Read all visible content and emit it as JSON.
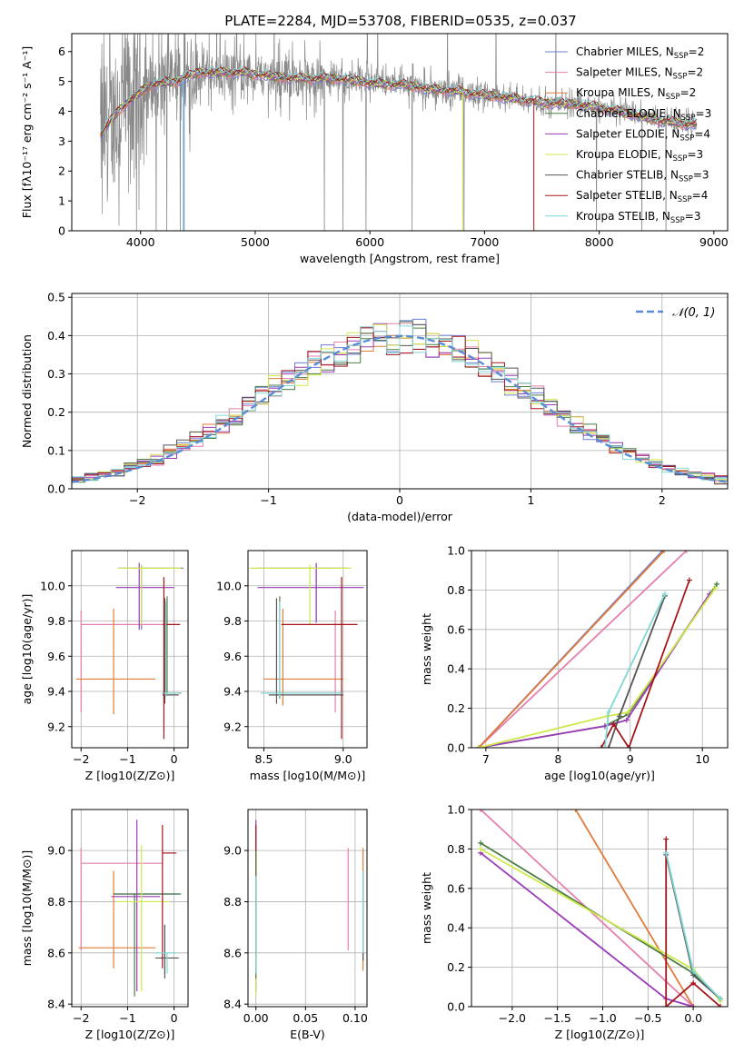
{
  "figure": {
    "title": "PLATE=2284, MJD=53708, FIBERID=0535, z=0.037"
  },
  "colors": {
    "Chabrier MILES": "#6a7fd6",
    "Salpeter MILES": "#e47fae",
    "Kroupa MILES": "#e07b39",
    "Chabrier ELODIE": "#4d7d44",
    "Salpeter ELODIE": "#9c3bb7",
    "Kroupa ELODIE": "#cfe84b",
    "Chabrier STELIB": "#555555",
    "Salpeter STELIB": "#a4161a",
    "Kroupa STELIB": "#7fd8d6",
    "data": "#888888",
    "normal": "#5b8dd6",
    "grid": "#b0b0b0"
  },
  "chart_data": [
    {
      "id": "spectrum",
      "type": "line",
      "title": "PLATE=2284, MJD=53708, FIBERID=0535, z=0.037",
      "xlabel": "wavelength [Angstrom, rest frame]",
      "ylabel": "Flux [fλ10⁻¹⁷ erg cm⁻² s⁻¹ A⁻¹]",
      "xlim": [
        3400,
        9120
      ],
      "ylim": [
        0,
        6.6
      ],
      "xticks": [
        4000,
        5000,
        6000,
        7000,
        8000,
        9000
      ],
      "yticks": [
        0,
        1,
        2,
        3,
        4,
        5,
        6
      ],
      "grid": false,
      "legend_position": "upper right",
      "legend": [
        {
          "name": "Chabrier MILES",
          "nssp": "2"
        },
        {
          "name": "Salpeter MILES",
          "nssp": "2"
        },
        {
          "name": "Kroupa MILES",
          "nssp": "2"
        },
        {
          "name": "Chabrier ELODIE",
          "nssp": "3"
        },
        {
          "name": "Salpeter ELODIE",
          "nssp": "4"
        },
        {
          "name": "Kroupa ELODIE",
          "nssp": "3"
        },
        {
          "name": "Chabrier STELIB",
          "nssp": "3"
        },
        {
          "name": "Salpeter STELIB",
          "nssp": "4"
        },
        {
          "name": "Kroupa STELIB",
          "nssp": "3"
        }
      ],
      "model_shape": {
        "x": [
          3650,
          3800,
          3950,
          4100,
          4300,
          4500,
          4700,
          4900,
          5100,
          5300,
          5500,
          5700,
          5900,
          6100,
          6300,
          6500,
          6700,
          6900,
          7100,
          7300,
          7500,
          7700,
          7900,
          8100,
          8300,
          8500,
          8700,
          8850
        ],
        "y": [
          3.2,
          4.0,
          4.5,
          4.9,
          5.0,
          5.3,
          5.3,
          5.3,
          5.2,
          5.1,
          5.1,
          5.1,
          5.0,
          4.9,
          4.9,
          4.75,
          4.7,
          4.6,
          4.5,
          4.4,
          4.3,
          4.25,
          4.2,
          4.05,
          3.9,
          3.7,
          3.6,
          3.55
        ]
      }
    },
    {
      "id": "residuals",
      "type": "line",
      "xlabel": "(data-model)/error",
      "ylabel": "Normed distribution",
      "xlim": [
        -2.5,
        2.5
      ],
      "ylim": [
        0,
        0.51
      ],
      "xticks": [
        -2,
        -1,
        0,
        1,
        2
      ],
      "yticks": [
        0.0,
        0.1,
        0.2,
        0.3,
        0.4,
        0.5
      ],
      "grid": true,
      "legend_position": "upper right",
      "normal_label": "𝒩(0, 1)",
      "bin_width": 0.1
    },
    {
      "id": "age-vs-Z",
      "type": "scatter",
      "xlabel": "Z [log10(Z/Z⊙)]",
      "ylabel": "age [log10(age/yr)]",
      "xlim": [
        -2.2,
        0.3
      ],
      "ylim": [
        9.08,
        10.2
      ],
      "xticks": [
        -2,
        -1,
        0
      ],
      "yticks": [
        9.2,
        9.4,
        9.6,
        9.8,
        10.0
      ],
      "grid": true,
      "crosses": [
        {
          "series": "Chabrier MILES",
          "x": -0.7,
          "y": 10.1,
          "dx": [
            0.5,
            0.9
          ],
          "dy": [
            0.35,
            0.02
          ]
        },
        {
          "series": "Salpeter MILES",
          "x": -2.0,
          "y": 9.78,
          "dx": [
            0.0,
            1.8
          ],
          "dy": [
            0.5,
            0.08
          ]
        },
        {
          "series": "Kroupa MILES",
          "x": -1.3,
          "y": 9.47,
          "dx": [
            0.8,
            0.9
          ],
          "dy": [
            0.2,
            0.4
          ]
        },
        {
          "series": "Chabrier ELODIE",
          "x": -0.15,
          "y": 9.39,
          "dx": [
            0.1,
            0.3
          ],
          "dy": [
            0.0,
            0.55
          ]
        },
        {
          "series": "Salpeter ELODIE",
          "x": -0.75,
          "y": 9.99,
          "dx": [
            0.5,
            0.75
          ],
          "dy": [
            0.24,
            0.14
          ]
        },
        {
          "series": "Kroupa ELODIE",
          "x": -0.7,
          "y": 10.1,
          "dx": [
            0.5,
            0.85
          ],
          "dy": [
            0.32,
            0.02
          ]
        },
        {
          "series": "Chabrier STELIB",
          "x": -0.2,
          "y": 9.38,
          "dx": [
            0.05,
            0.3
          ],
          "dy": [
            0.05,
            0.55
          ]
        },
        {
          "series": "Salpeter STELIB",
          "x": -0.22,
          "y": 9.78,
          "dx": [
            0.02,
            0.35
          ],
          "dy": [
            0.65,
            0.27
          ]
        },
        {
          "series": "Kroupa STELIB",
          "x": -0.18,
          "y": 9.39,
          "dx": [
            0.05,
            0.3
          ],
          "dy": [
            0.02,
            0.52
          ]
        }
      ]
    },
    {
      "id": "age-vs-mass",
      "type": "scatter",
      "xlabel": "mass [log10(M/M⊙)]",
      "ylabel": "",
      "xlim": [
        8.4,
        9.15
      ],
      "ylim": [
        9.08,
        10.2
      ],
      "xticks": [
        8.5,
        9.0
      ],
      "yticks": [
        9.2,
        9.4,
        9.6,
        9.8,
        10.0
      ],
      "grid": true,
      "crosses": [
        {
          "series": "Chabrier MILES",
          "x": 8.83,
          "y": 10.1,
          "dx": [
            0.37,
            0.2
          ],
          "dy": [
            0.3,
            0.02
          ]
        },
        {
          "series": "Salpeter MILES",
          "x": 8.95,
          "y": 9.78,
          "dx": [
            0.0,
            0.06
          ],
          "dy": [
            0.5,
            0.08
          ]
        },
        {
          "series": "Kroupa MILES",
          "x": 8.62,
          "y": 9.47,
          "dx": [
            0.12,
            0.38
          ],
          "dy": [
            0.15,
            0.4
          ]
        },
        {
          "series": "Chabrier ELODIE",
          "x": 8.6,
          "y": 9.39,
          "dx": [
            0.12,
            0.4
          ],
          "dy": [
            0.03,
            0.55
          ]
        },
        {
          "series": "Salpeter ELODIE",
          "x": 8.83,
          "y": 9.99,
          "dx": [
            0.37,
            0.3
          ],
          "dy": [
            0.2,
            0.14
          ]
        },
        {
          "series": "Kroupa ELODIE",
          "x": 8.79,
          "y": 10.1,
          "dx": [
            0.38,
            0.26
          ],
          "dy": [
            0.32,
            0.02
          ]
        },
        {
          "series": "Chabrier STELIB",
          "x": 8.58,
          "y": 9.38,
          "dx": [
            0.05,
            0.42
          ],
          "dy": [
            0.05,
            0.55
          ]
        },
        {
          "series": "Salpeter STELIB",
          "x": 8.99,
          "y": 9.78,
          "dx": [
            0.38,
            0.1
          ],
          "dy": [
            0.65,
            0.27
          ]
        },
        {
          "series": "Kroupa STELIB",
          "x": 8.6,
          "y": 9.39,
          "dx": [
            0.12,
            0.4
          ],
          "dy": [
            0.02,
            0.52
          ]
        }
      ]
    },
    {
      "id": "weight-vs-age",
      "type": "line",
      "xlabel": "age [log10(age/yr)]",
      "ylabel": "mass weight",
      "xlim": [
        6.8,
        10.35
      ],
      "ylim": [
        0,
        1.0
      ],
      "xticks": [
        7,
        8,
        9,
        10
      ],
      "yticks": [
        0.0,
        0.2,
        0.4,
        0.6,
        0.8,
        1.0
      ],
      "grid": true,
      "series": [
        {
          "name": "Chabrier MILES",
          "x": [
            6.9,
            9.45
          ],
          "y": [
            0.0,
            1.0
          ]
        },
        {
          "name": "Salpeter MILES",
          "x": [
            6.9,
            9.78
          ],
          "y": [
            0.0,
            1.0
          ]
        },
        {
          "name": "Kroupa MILES",
          "x": [
            6.9,
            9.47
          ],
          "y": [
            0.0,
            1.0
          ]
        },
        {
          "name": "Chabrier ELODIE",
          "x": [
            6.9,
            8.65,
            8.97,
            10.2
          ],
          "y": [
            0.0,
            0.11,
            0.17,
            0.83
          ]
        },
        {
          "name": "Salpeter ELODIE",
          "x": [
            6.9,
            8.65,
            8.95,
            10.1
          ],
          "y": [
            0.0,
            0.11,
            0.14,
            0.78
          ]
        },
        {
          "name": "Kroupa ELODIE",
          "x": [
            6.9,
            8.68,
            8.97,
            10.18
          ],
          "y": [
            0.0,
            0.16,
            0.18,
            0.81
          ]
        },
        {
          "name": "Chabrier STELIB",
          "x": [
            8.7,
            8.85,
            9.48
          ],
          "y": [
            0.0,
            0.16,
            0.77
          ]
        },
        {
          "name": "Salpeter STELIB",
          "x": [
            8.6,
            8.77,
            8.98,
            9.82
          ],
          "y": [
            0.0,
            0.12,
            0.0,
            0.85
          ]
        },
        {
          "name": "Kroupa STELIB",
          "x": [
            8.65,
            8.7,
            9.48
          ],
          "y": [
            0.0,
            0.18,
            0.78
          ]
        }
      ]
    },
    {
      "id": "mass-vs-Z",
      "type": "scatter",
      "xlabel": "Z [log10(Z/Z⊙)]",
      "ylabel": "mass [log10(M/M⊙)]",
      "xlim": [
        -2.2,
        0.3
      ],
      "ylim": [
        8.39,
        9.16
      ],
      "xticks": [
        -2,
        -1,
        0
      ],
      "yticks": [
        8.4,
        8.6,
        8.8,
        9.0
      ],
      "grid": true,
      "crosses": [
        {
          "series": "Chabrier MILES",
          "x": -1.3,
          "y": 8.83,
          "dx": [
            0.0,
            1.4
          ],
          "dy": [
            0.0,
            0.0
          ]
        },
        {
          "series": "Salpeter MILES",
          "x": -2.0,
          "y": 8.95,
          "dx": [
            0.0,
            1.75
          ],
          "dy": [
            0.34,
            0.06
          ]
        },
        {
          "series": "Kroupa MILES",
          "x": -1.3,
          "y": 8.62,
          "dx": [
            0.75,
            0.9
          ],
          "dy": [
            0.08,
            0.3
          ]
        },
        {
          "series": "Chabrier ELODIE",
          "x": -0.85,
          "y": 8.83,
          "dx": [
            0.45,
            1.0
          ],
          "dy": [
            0.4,
            0.0
          ]
        },
        {
          "series": "Salpeter ELODIE",
          "x": -0.8,
          "y": 8.82,
          "dx": [
            0.55,
            0.5
          ],
          "dy": [
            0.37,
            0.3
          ]
        },
        {
          "series": "Kroupa ELODIE",
          "x": -0.7,
          "y": 8.8,
          "dx": [
            0.55,
            0.6
          ],
          "dy": [
            0.35,
            0.22
          ]
        },
        {
          "series": "Chabrier STELIB",
          "x": -0.2,
          "y": 8.58,
          "dx": [
            0.2,
            0.3
          ],
          "dy": [
            0.08,
            0.13
          ]
        },
        {
          "series": "Salpeter STELIB",
          "x": -0.25,
          "y": 8.99,
          "dx": [
            0.0,
            0.3
          ],
          "dy": [
            0.45,
            0.11
          ]
        },
        {
          "series": "Kroupa STELIB",
          "x": -0.15,
          "y": 8.6,
          "dx": [
            0.25,
            0.2
          ],
          "dy": [
            0.08,
            0.0
          ]
        }
      ]
    },
    {
      "id": "mass-vs-ebv",
      "type": "scatter",
      "xlabel": "E(B-V)",
      "ylabel": "",
      "xlim": [
        -0.008,
        0.112
      ],
      "ylim": [
        8.39,
        9.16
      ],
      "xticks": [
        0.0,
        0.05,
        0.1
      ],
      "yticks": [
        8.4,
        8.6,
        8.8,
        9.0
      ],
      "grid": true,
      "bars": [
        {
          "series": "Salpeter MILES",
          "x": 0.093,
          "y": [
            8.61,
            9.01
          ]
        },
        {
          "series": "Kroupa MILES",
          "x": 0.108,
          "y": [
            8.53,
            9.01
          ]
        },
        {
          "series": "Chabrier STELIB",
          "x": 0.108,
          "y": [
            8.57,
            8.92
          ]
        },
        {
          "series": "Kroupa STELIB",
          "x": 0.108,
          "y": [
            8.6,
            8.92
          ]
        },
        {
          "series": "Salpeter ELODIE",
          "x": 0.0,
          "y": [
            8.45,
            9.12
          ]
        },
        {
          "series": "Kroupa ELODIE",
          "x": 0.0,
          "y": [
            8.43,
            9.0
          ]
        },
        {
          "series": "Salpeter STELIB",
          "x": 0.0,
          "y": [
            8.6,
            9.1
          ]
        },
        {
          "series": "Chabrier ELODIE",
          "x": 0.0,
          "y": [
            8.5,
            9.0
          ]
        },
        {
          "series": "Kroupa STELIB",
          "x": 0.0,
          "y": [
            8.52,
            8.9
          ]
        }
      ]
    },
    {
      "id": "weight-vs-Z",
      "type": "line",
      "xlabel": "Z [log10(Z/Z⊙)]",
      "ylabel": "mass weight",
      "xlim": [
        -2.45,
        0.38
      ],
      "ylim": [
        0,
        1.0
      ],
      "xticks": [
        -2.0,
        -1.5,
        -1.0,
        -0.5,
        0.0
      ],
      "yticks": [
        0.0,
        0.2,
        0.4,
        0.6,
        0.8,
        1.0
      ],
      "grid": true,
      "series": [
        {
          "name": "Salpeter MILES",
          "x": [
            -2.35,
            0.0
          ],
          "y": [
            1.0,
            0.0
          ]
        },
        {
          "name": "Kroupa MILES",
          "x": [
            -1.3,
            0.0
          ],
          "y": [
            1.0,
            0.0
          ]
        },
        {
          "name": "Chabrier ELODIE",
          "x": [
            -2.35,
            0.0,
            0.3
          ],
          "y": [
            0.83,
            0.17,
            0.04
          ]
        },
        {
          "name": "Salpeter ELODIE",
          "x": [
            -2.35,
            -0.3,
            0.0
          ],
          "y": [
            0.78,
            0.04,
            0.0
          ]
        },
        {
          "name": "Kroupa ELODIE",
          "x": [
            -2.35,
            0.0,
            0.3
          ],
          "y": [
            0.8,
            0.19,
            0.03
          ]
        },
        {
          "name": "Chabrier STELIB",
          "x": [
            -0.3,
            0.0,
            0.3
          ],
          "y": [
            0.77,
            0.16,
            0.04
          ]
        },
        {
          "name": "Salpeter STELIB",
          "x": [
            -0.3,
            -0.3,
            0.0,
            0.3
          ],
          "y": [
            0.85,
            0.0,
            0.12,
            0.0
          ]
        },
        {
          "name": "Kroupa STELIB",
          "x": [
            -0.3,
            0.0,
            0.3
          ],
          "y": [
            0.78,
            0.18,
            0.04
          ]
        }
      ]
    }
  ]
}
